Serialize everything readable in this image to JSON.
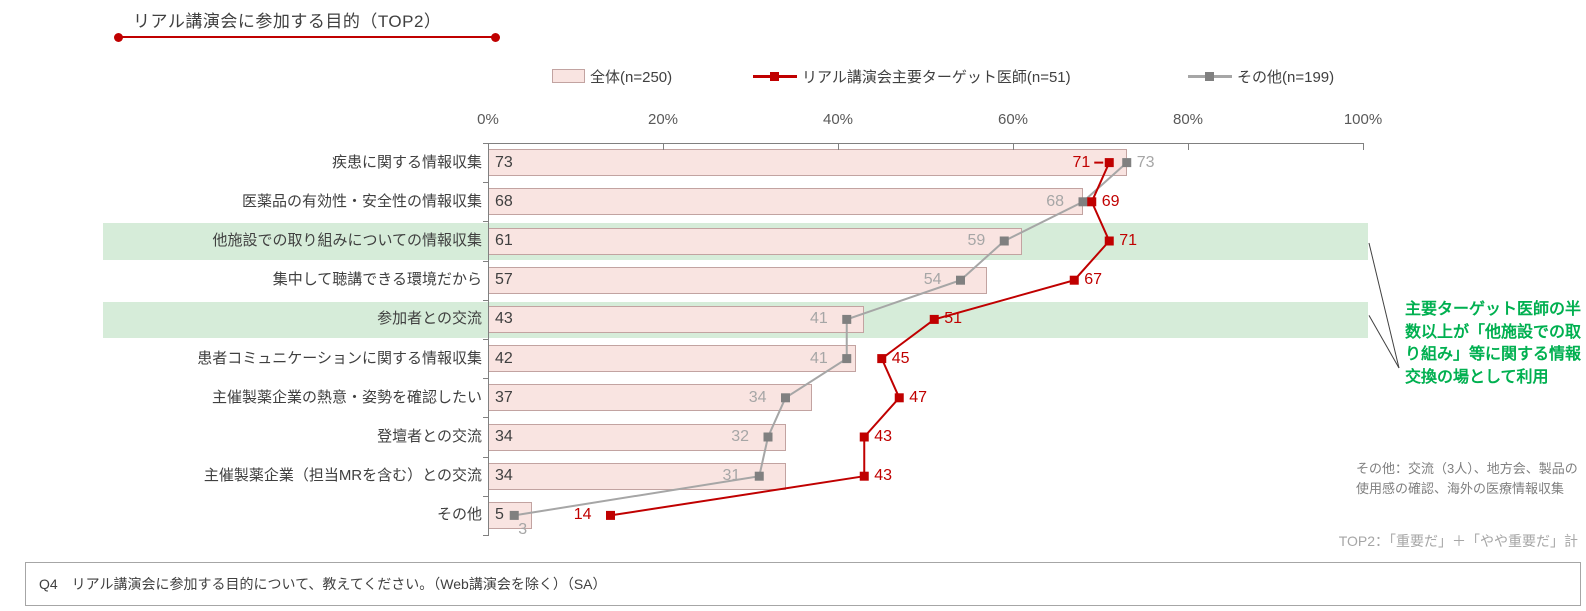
{
  "page": {
    "title": "リアル講演会に参加する目的（TOP2）"
  },
  "legend": [
    {
      "label": "全体(n=250)",
      "type": "bar",
      "color": "#f9e4e1"
    },
    {
      "label": "リアル講演会主要ターゲット医師(n=51)",
      "type": "line",
      "color": "#c00000"
    },
    {
      "label": "その他(n=199)",
      "type": "line",
      "color": "#a6a6a6"
    }
  ],
  "chart_data": {
    "type": "bar",
    "orientation": "horizontal",
    "title": "リアル講演会に参加する目的（TOP2）",
    "categories": [
      "疾患に関する情報収集",
      "医薬品の有効性・安全性の情報収集",
      "他施設での取り組みについての情報収集",
      "集中して聴講できる環境だから",
      "参加者との交流",
      "患者コミュニケーションに関する情報収集",
      "主催製薬企業の熱意・姿勢を確認したい",
      "登壇者との交流",
      "主催製薬企業（担当MRを含む）との交流",
      "その他"
    ],
    "series": [
      {
        "name": "全体(n=250)",
        "type": "bar",
        "color": "#f9e4e1",
        "values": [
          73,
          68,
          61,
          57,
          43,
          42,
          37,
          34,
          34,
          5
        ]
      },
      {
        "name": "リアル講演会主要ターゲット医師(n=51)",
        "type": "line",
        "color": "#c00000",
        "values": [
          71,
          69,
          71,
          67,
          51,
          45,
          47,
          43,
          43,
          14
        ],
        "label_sides": [
          "left",
          "right",
          "right",
          "right",
          "right",
          "right",
          "right",
          "right",
          "right",
          "left"
        ]
      },
      {
        "name": "その他(n=199)",
        "type": "line",
        "color": "#a6a6a6",
        "values": [
          73,
          68,
          59,
          54,
          41,
          41,
          34,
          32,
          31,
          3
        ],
        "label_sides": [
          "right",
          "left",
          "left",
          "left",
          "left",
          "left",
          "left",
          "left",
          "left",
          "below"
        ]
      }
    ],
    "x_axis": {
      "min": 0,
      "max": 100,
      "ticks": [
        "0%",
        "20%",
        "40%",
        "60%",
        "80%",
        "100%"
      ]
    },
    "highlighted_rows": [
      2,
      4
    ],
    "highlight_color": "#d6ecd9",
    "legend_position": "top"
  },
  "annotation": {
    "text": "主要ターゲット医師の半数以上が「他施設での取り組み」等に関する情報交換の場として利用",
    "color": "#00b050"
  },
  "notes": {
    "others_breakdown": "その他：交流（3人）、地方会、製品の使用感の確認、海外の医療情報収集",
    "top2_definition": "TOP2：「重要だ」＋「やや重要だ」計"
  },
  "footer": {
    "question": "Q4　リアル講演会に参加する目的について、教えてください。（Web講演会を除く）（SA）"
  },
  "colors": {
    "accent_red": "#c00000",
    "bar_fill": "#f9e4e1",
    "bar_border": "#c2a3a1",
    "gray_series": "#a6a6a6",
    "band_green": "#d6ecd9",
    "annotation_green": "#00b050"
  }
}
